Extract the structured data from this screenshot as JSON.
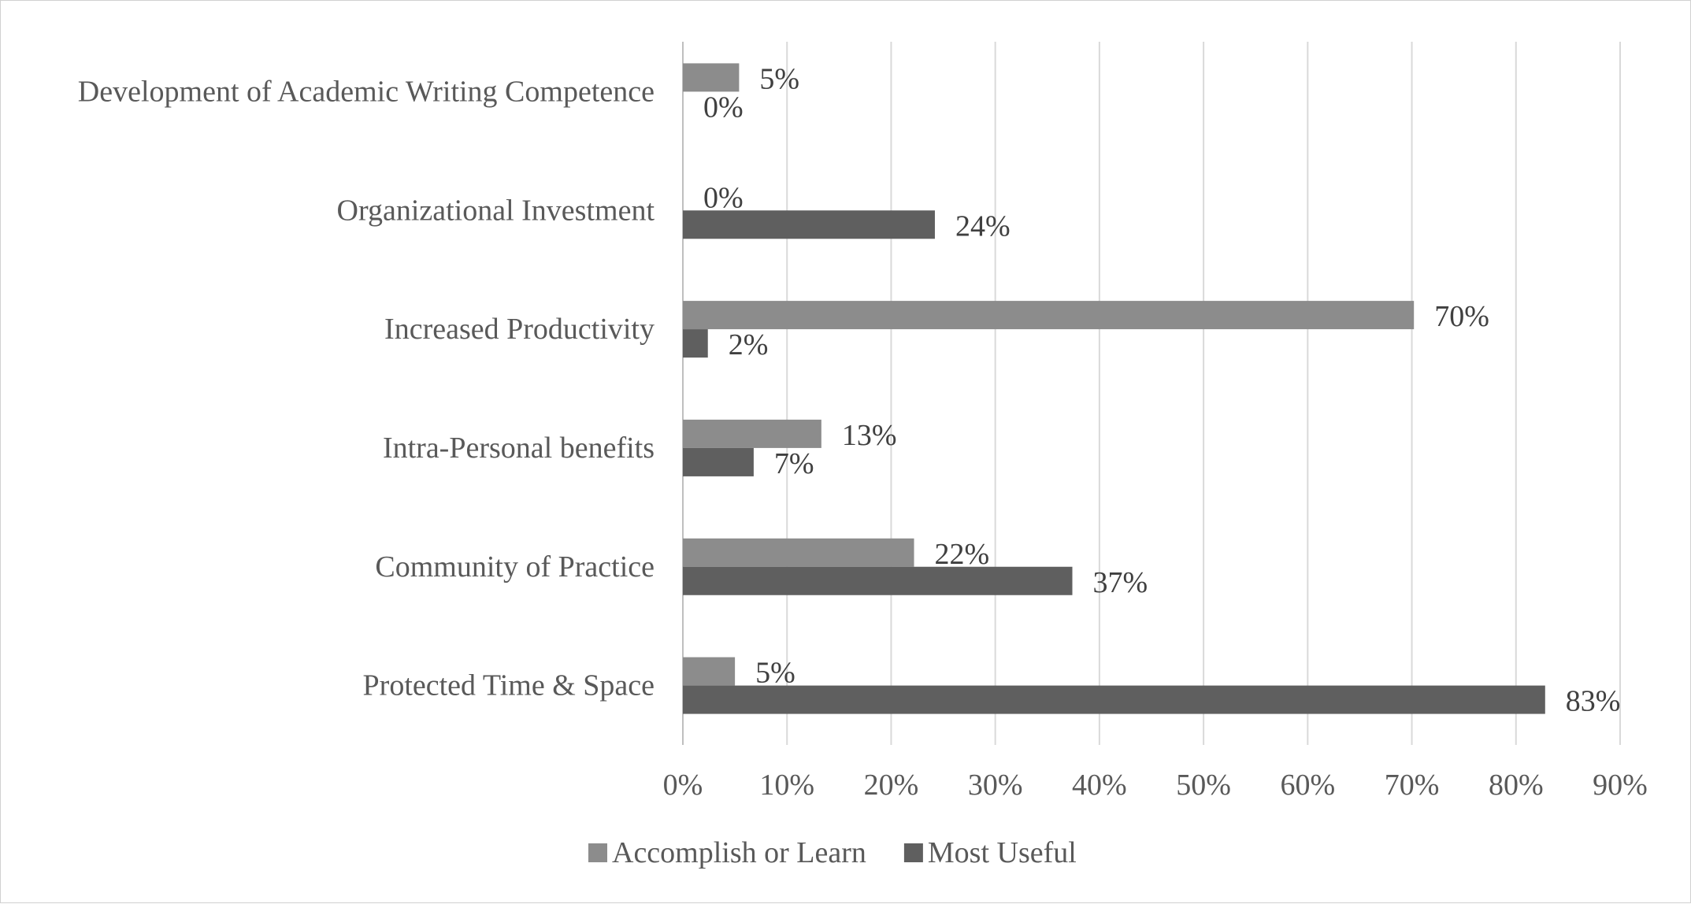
{
  "chart_data": {
    "type": "bar",
    "orientation": "horizontal",
    "title": "",
    "xlabel": "",
    "ylabel": "",
    "categories": [
      "Development of Academic Writing Competence",
      "Organizational Investment",
      "Increased Productivity",
      "Intra-Personal benefits",
      "Community of Practice",
      "Protected Time & Space"
    ],
    "series": [
      {
        "name": "Accomplish or Learn",
        "color": "#8c8c8c",
        "values": [
          5.4,
          0,
          70.2,
          13.3,
          22.2,
          5.0
        ],
        "labels": [
          "5%",
          "0%",
          "70%",
          "13%",
          "22%",
          "5%"
        ]
      },
      {
        "name": "Most Useful",
        "color": "#5f5f5f",
        "values": [
          0,
          24.2,
          2.4,
          6.8,
          37.4,
          82.8
        ],
        "labels": [
          "0%",
          "24%",
          "2%",
          "7%",
          "37%",
          "83%"
        ]
      }
    ],
    "xlim": [
      0,
      90
    ],
    "xticks": [
      0,
      10,
      20,
      30,
      40,
      50,
      60,
      70,
      80,
      90
    ],
    "xtick_labels": [
      "0%",
      "10%",
      "20%",
      "30%",
      "40%",
      "50%",
      "60%",
      "70%",
      "80%",
      "90%"
    ],
    "grid": true,
    "legend_position": "bottom"
  }
}
